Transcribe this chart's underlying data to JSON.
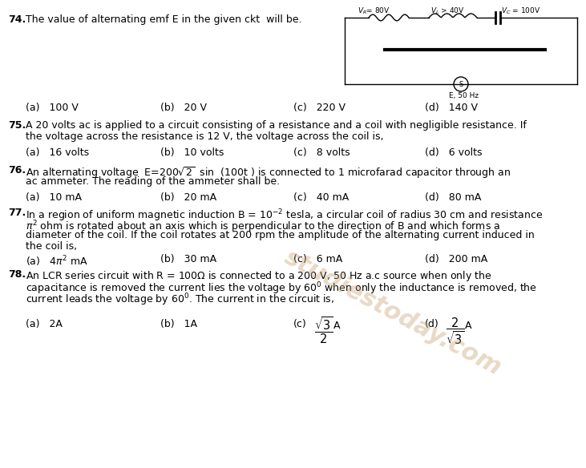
{
  "bg_color": "#ffffff",
  "text_color": "#000000",
  "watermark_color": "#c8b090",
  "figsize": [
    7.31,
    5.84
  ],
  "dpi": 100,
  "q74": {
    "num": "74.",
    "text": "The value of alternating emf E in the given ckt  will be.",
    "opts": [
      "(a)   100 V",
      "(b)   20 V",
      "(c)   220 V",
      "(d)   140 V"
    ]
  },
  "q75": {
    "num": "75.",
    "line1": "A 20 volts ac is applied to a circuit consisting of a resistance and a coil with negligible resistance. If",
    "line2": "the voltage across the resistance is 12 V, the voltage across the coil is,",
    "opts": [
      "(a)   16 volts",
      "(b)   10 volts",
      "(c)   8 volts",
      "(d)   6 volts"
    ]
  },
  "q76": {
    "num": "76.",
    "line2": "ac ammeter. The reading of the ammeter shall be.",
    "opts": [
      "(a)   10 mA",
      "(b)   20 mA",
      "(c)   40 mA",
      "(d)   80 mA"
    ]
  },
  "q77": {
    "num": "77.",
    "line2": "diameter of the coil. If the coil rotates at 200 rpm the amplitude of the alternating current induced in",
    "line3": "the coil is,",
    "opts_a": "(a)   ",
    "opts_b": "(b)   30 mA",
    "opts_c": "(c)   6 mA",
    "opts_d": "(d)   200 mA"
  },
  "q78": {
    "num": "78.",
    "line1": "An LCR series circuit with R = 100Ω is connected to a 200 V, 50 Hz a.c source when only the",
    "line2": "capacitance is removed the current lies the voltage by 60° when only the inductance is removed, the",
    "line3": "current leads the voltage by 60°. The current in the circuit is,"
  },
  "circuit": {
    "label_vr": "VR= 80V",
    "label_vl": "VL > 40V",
    "label_vc": "VC = 100V",
    "source_label": "E, 50 Hz"
  }
}
